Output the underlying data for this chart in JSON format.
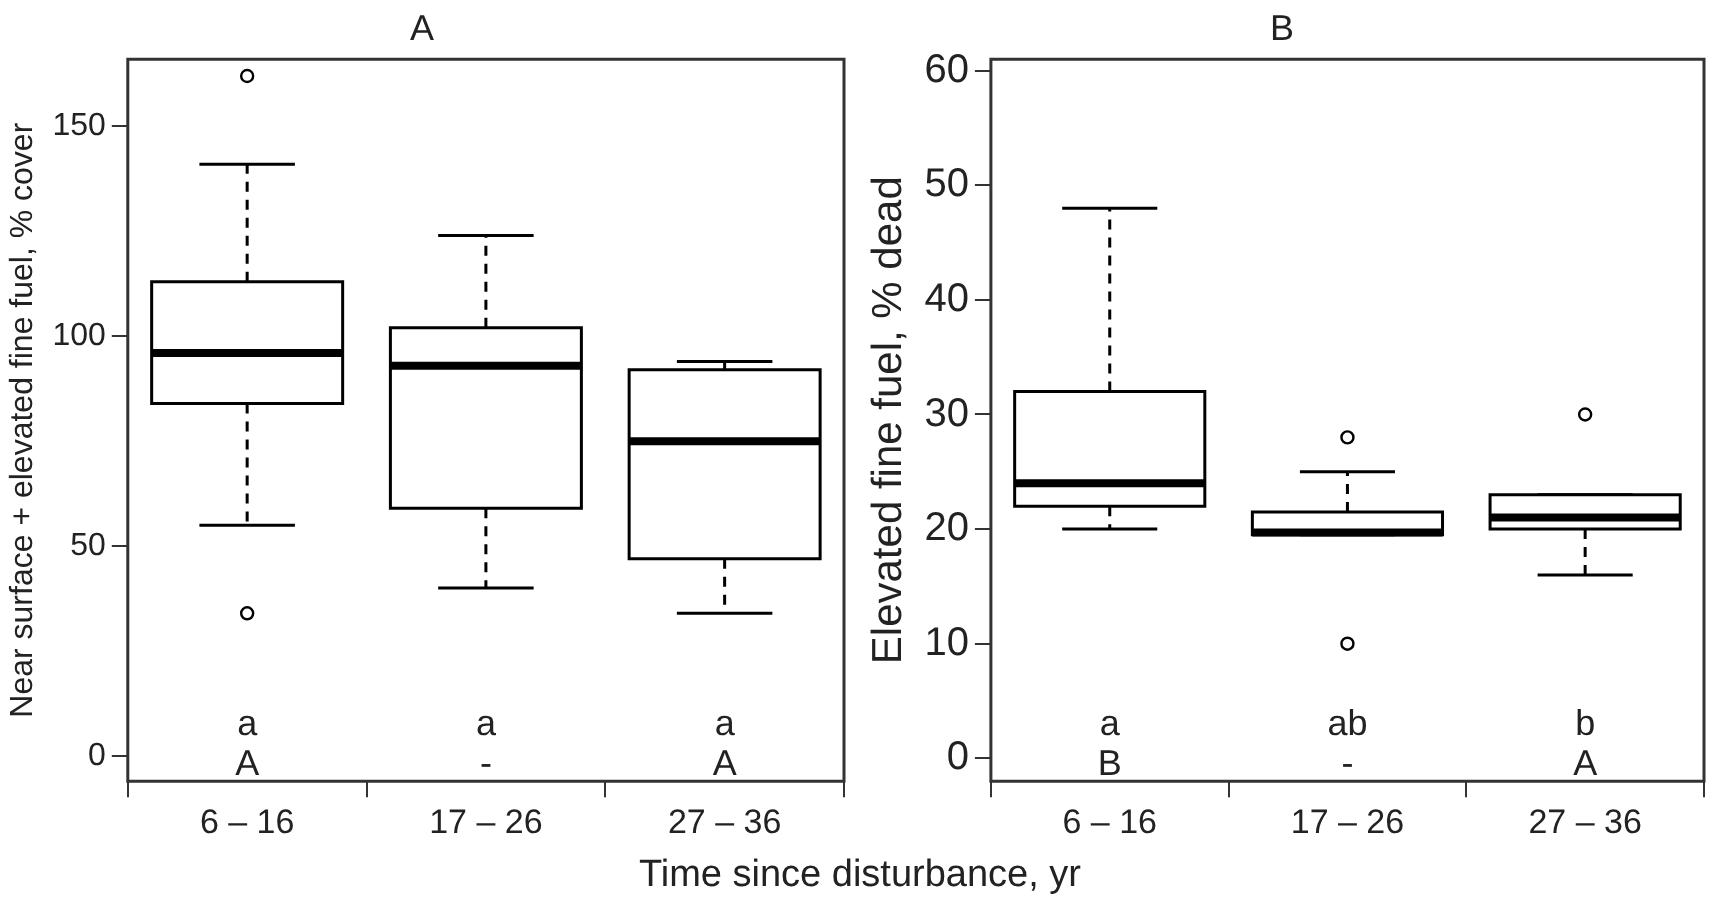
{
  "chart_data": [
    {
      "type": "box",
      "title": "A",
      "xlabel": "Time since disturbance, yr",
      "ylabel": "Near surface + elevated fine fuel, % cover",
      "categories": [
        "6 – 16",
        "17 – 26",
        "27 – 36"
      ],
      "color": "#ffffff",
      "boxes": [
        {
          "low": 55,
          "q1": 84,
          "median": 96,
          "q3": 113,
          "high": 141,
          "outliers": [
            162,
            34
          ]
        },
        {
          "low": 40,
          "q1": 59,
          "median": 93,
          "q3": 102,
          "high": 124
        },
        {
          "low": 34,
          "q1": 47,
          "median": 75,
          "q3": 92,
          "high": 94
        }
      ],
      "ylim": [
        -6,
        166
      ],
      "yticks": [
        0,
        50,
        100,
        150
      ],
      "grid": false,
      "annotations": [
        "a",
        "A",
        "a",
        "-",
        "a",
        "A"
      ]
    },
    {
      "type": "box",
      "title": "B",
      "ylabel": "Elevated fine fuel, % dead",
      "categories": [
        "6 – 16",
        "17 – 26",
        "27 – 36"
      ],
      "color": "#ffffff",
      "boxes": [
        {
          "low": 20,
          "q1": 22,
          "median": 24,
          "q3": 32,
          "high": 48
        },
        {
          "low": 19.5,
          "q1": 19.5,
          "median": 19.7,
          "q3": 21.5,
          "high": 25,
          "outliers": [
            28,
            10
          ]
        },
        {
          "low": 16,
          "q1": 20,
          "median": 21,
          "q3": 23,
          "high": 23,
          "outliers": [
            30
          ]
        }
      ],
      "ylim": [
        -2,
        61
      ],
      "yticks": [
        0,
        10,
        20,
        30,
        40,
        50,
        60
      ],
      "grid": false,
      "annotations": [
        "a",
        "B",
        "ab",
        "-",
        "b",
        "A"
      ]
    }
  ]
}
